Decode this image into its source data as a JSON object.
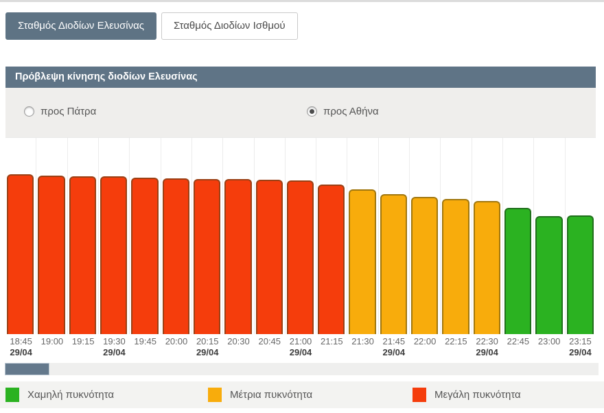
{
  "tabs": [
    {
      "label": "Σταθμός Διοδίων Ελευσίνας",
      "active": true
    },
    {
      "label": "Σταθμός Διοδίων Ισθμού",
      "active": false
    }
  ],
  "panel": {
    "title": "Πρόβλεψη κίνησης διοδίων Ελευσίνας"
  },
  "radios": [
    {
      "label": "προς Πάτρα",
      "selected": false
    },
    {
      "label": "προς Αθήνα",
      "selected": true
    }
  ],
  "chart_data": {
    "type": "bar",
    "title": "Πρόβλεψη κίνησης διοδίων Ελευσίνας",
    "direction_selected": "προς Αθήνα",
    "categories": [
      "18:45",
      "19:00",
      "19:15",
      "19:30",
      "19:45",
      "20:00",
      "20:15",
      "20:30",
      "20:45",
      "21:00",
      "21:15",
      "21:30",
      "21:45",
      "22:00",
      "22:15",
      "22:30",
      "22:45",
      "23:00",
      "23:15"
    ],
    "dates": [
      "29/04",
      "",
      "",
      "29/04",
      "",
      "",
      "29/04",
      "",
      "",
      "29/04",
      "",
      "",
      "29/04",
      "",
      "",
      "29/04",
      "",
      "",
      "29/04"
    ],
    "values_pct": [
      81.5,
      80.8,
      80.5,
      80.5,
      79.8,
      79.4,
      79.1,
      79.1,
      78.7,
      78.4,
      76.3,
      73.9,
      71.4,
      70.0,
      69.0,
      67.9,
      64.5,
      60.3,
      60.6
    ],
    "levels": [
      "high",
      "high",
      "high",
      "high",
      "high",
      "high",
      "high",
      "high",
      "high",
      "high",
      "high",
      "medium",
      "medium",
      "medium",
      "medium",
      "medium",
      "low",
      "low",
      "low"
    ],
    "colors": {
      "high": {
        "fill": "#f53d0c",
        "border": "#9a4015"
      },
      "medium": {
        "fill": "#f8ac0c",
        "border": "#a1770e"
      },
      "low": {
        "fill": "#2bb221",
        "border": "#20701c"
      }
    },
    "ylim": [
      0,
      100
    ],
    "grid": "vertical-column-separators",
    "legend_position": "bottom"
  },
  "legend": {
    "items": [
      {
        "label": "Χαμηλή πυκνότητα",
        "color": "#2bb221"
      },
      {
        "label": "Μέτρια πυκνότητα",
        "color": "#f8ac0c"
      },
      {
        "label": "Μεγάλη πυκνότητα",
        "color": "#f53d0c"
      }
    ]
  },
  "ui_colors": {
    "accent_slate": "#5e7384",
    "header_slate": "#5f7486",
    "scroll_thumb": "#64798c"
  }
}
